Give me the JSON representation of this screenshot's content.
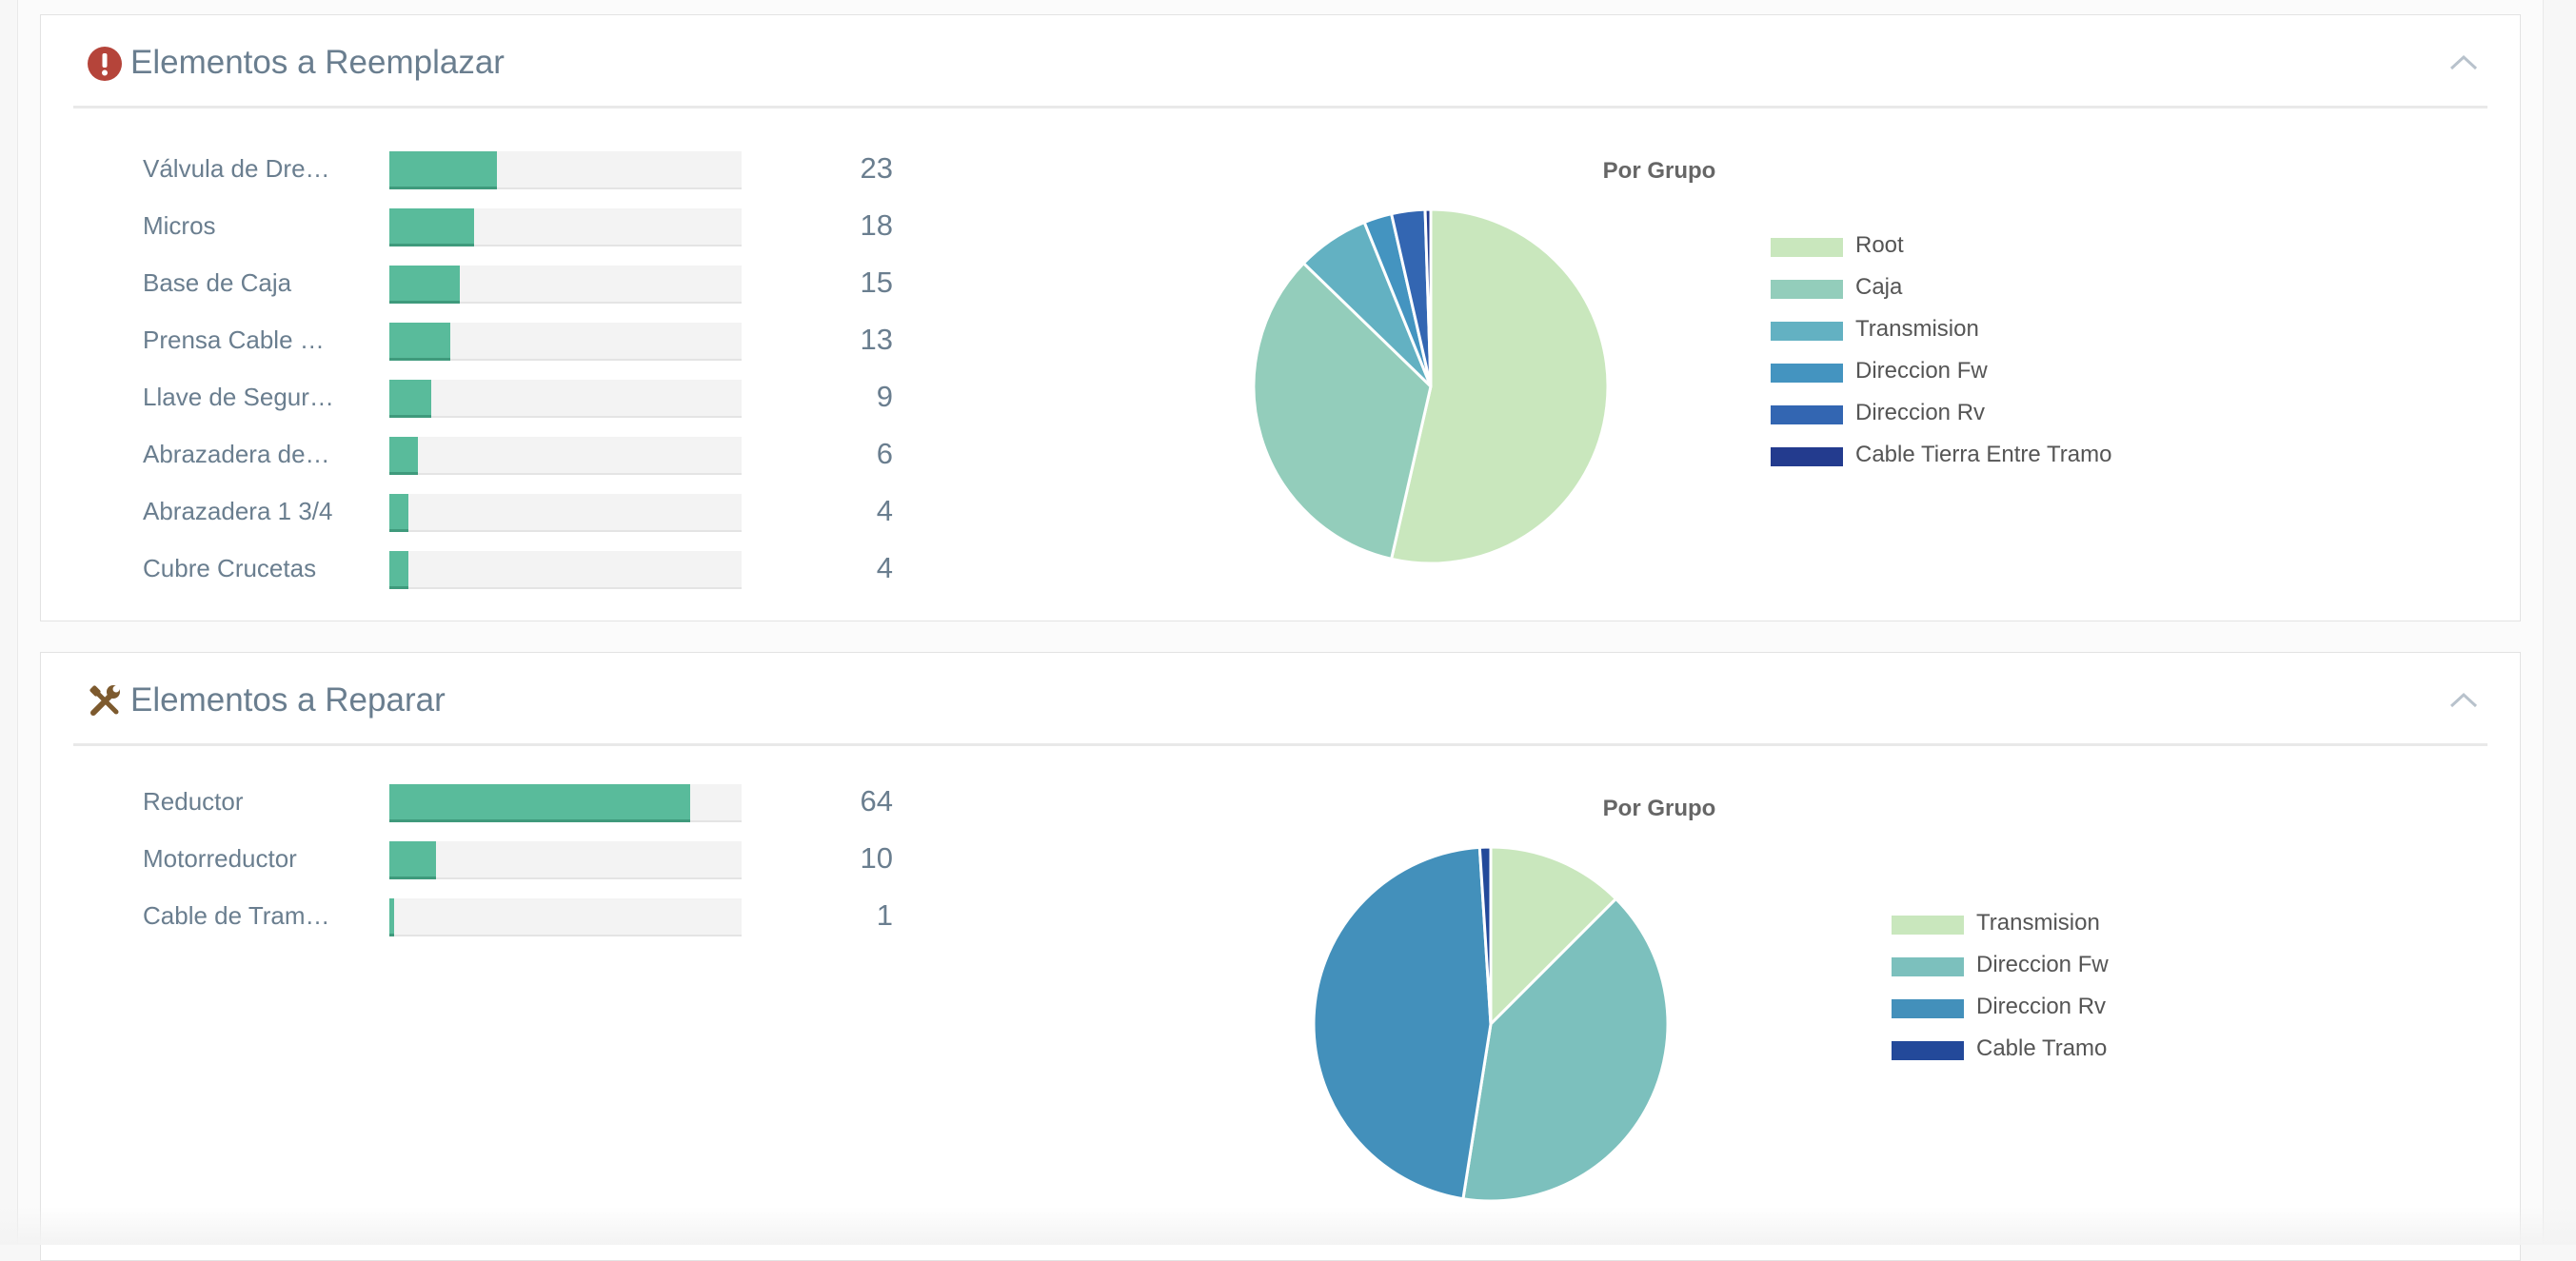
{
  "panels": [
    {
      "title": "Elementos a Reemplazar",
      "icon": "exclamation-circle-icon",
      "icon_color": "#b5443a",
      "bars_max": 75,
      "bars": [
        {
          "label": "Válvula de Drenaje",
          "value": 23
        },
        {
          "label": "Micros",
          "value": 18
        },
        {
          "label": "Base de Caja",
          "value": 15
        },
        {
          "label": "Prensa Cable de Potencia",
          "value": 13
        },
        {
          "label": "Llave de Seguridad",
          "value": 9
        },
        {
          "label": "Abrazadera de Tubo",
          "value": 6
        },
        {
          "label": "Abrazadera 1 3/4",
          "value": 4
        },
        {
          "label": "Cubre Crucetas",
          "value": 4
        }
      ],
      "bars_display": [
        "Válvula de Dre…",
        "Micros",
        "Base de Caja",
        "Prensa Cable …",
        "Llave de Segur…",
        "Abrazadera de…",
        "Abrazadera 1 3/4",
        "Cubre Crucetas"
      ],
      "chart_data": {
        "type": "pie",
        "title": "Por Grupo",
        "legend_position": "right",
        "slices": [
          {
            "name": "Root",
            "value": 52.5,
            "color": "#c9e7bd"
          },
          {
            "name": "Caja",
            "value": 33.0,
            "color": "#93cdbb"
          },
          {
            "name": "Transmision",
            "value": 6.5,
            "color": "#63b1c2"
          },
          {
            "name": "Direccion Fw",
            "value": 2.5,
            "color": "#4494c0"
          },
          {
            "name": "Direccion Rv",
            "value": 3.0,
            "color": "#3366b2"
          },
          {
            "name": "Cable Tierra Entre Tramo",
            "value": 0.5,
            "color": "#233b8e"
          }
        ]
      }
    },
    {
      "title": "Elementos a Reparar",
      "icon": "tools-icon",
      "icon_color": "#7d5a2e",
      "bars_max": 75,
      "bars": [
        {
          "label": "Reductor",
          "value": 64
        },
        {
          "label": "Motorreductor",
          "value": 10
        },
        {
          "label": "Cable de Tramo",
          "value": 1
        }
      ],
      "bars_display": [
        "Reductor",
        "Motorreductor",
        "Cable de Tram…"
      ],
      "chart_data": {
        "type": "pie",
        "title": "Por Grupo",
        "legend_position": "right",
        "slices": [
          {
            "name": "Transmision",
            "value": 12.5,
            "color": "#c9e7bd"
          },
          {
            "name": "Direccion Fw",
            "value": 40.0,
            "color": "#7cc0bd"
          },
          {
            "name": "Direccion Rv",
            "value": 46.5,
            "color": "#4390bb"
          },
          {
            "name": "Cable Tramo",
            "value": 1.0,
            "color": "#23499a"
          }
        ]
      }
    }
  ]
}
